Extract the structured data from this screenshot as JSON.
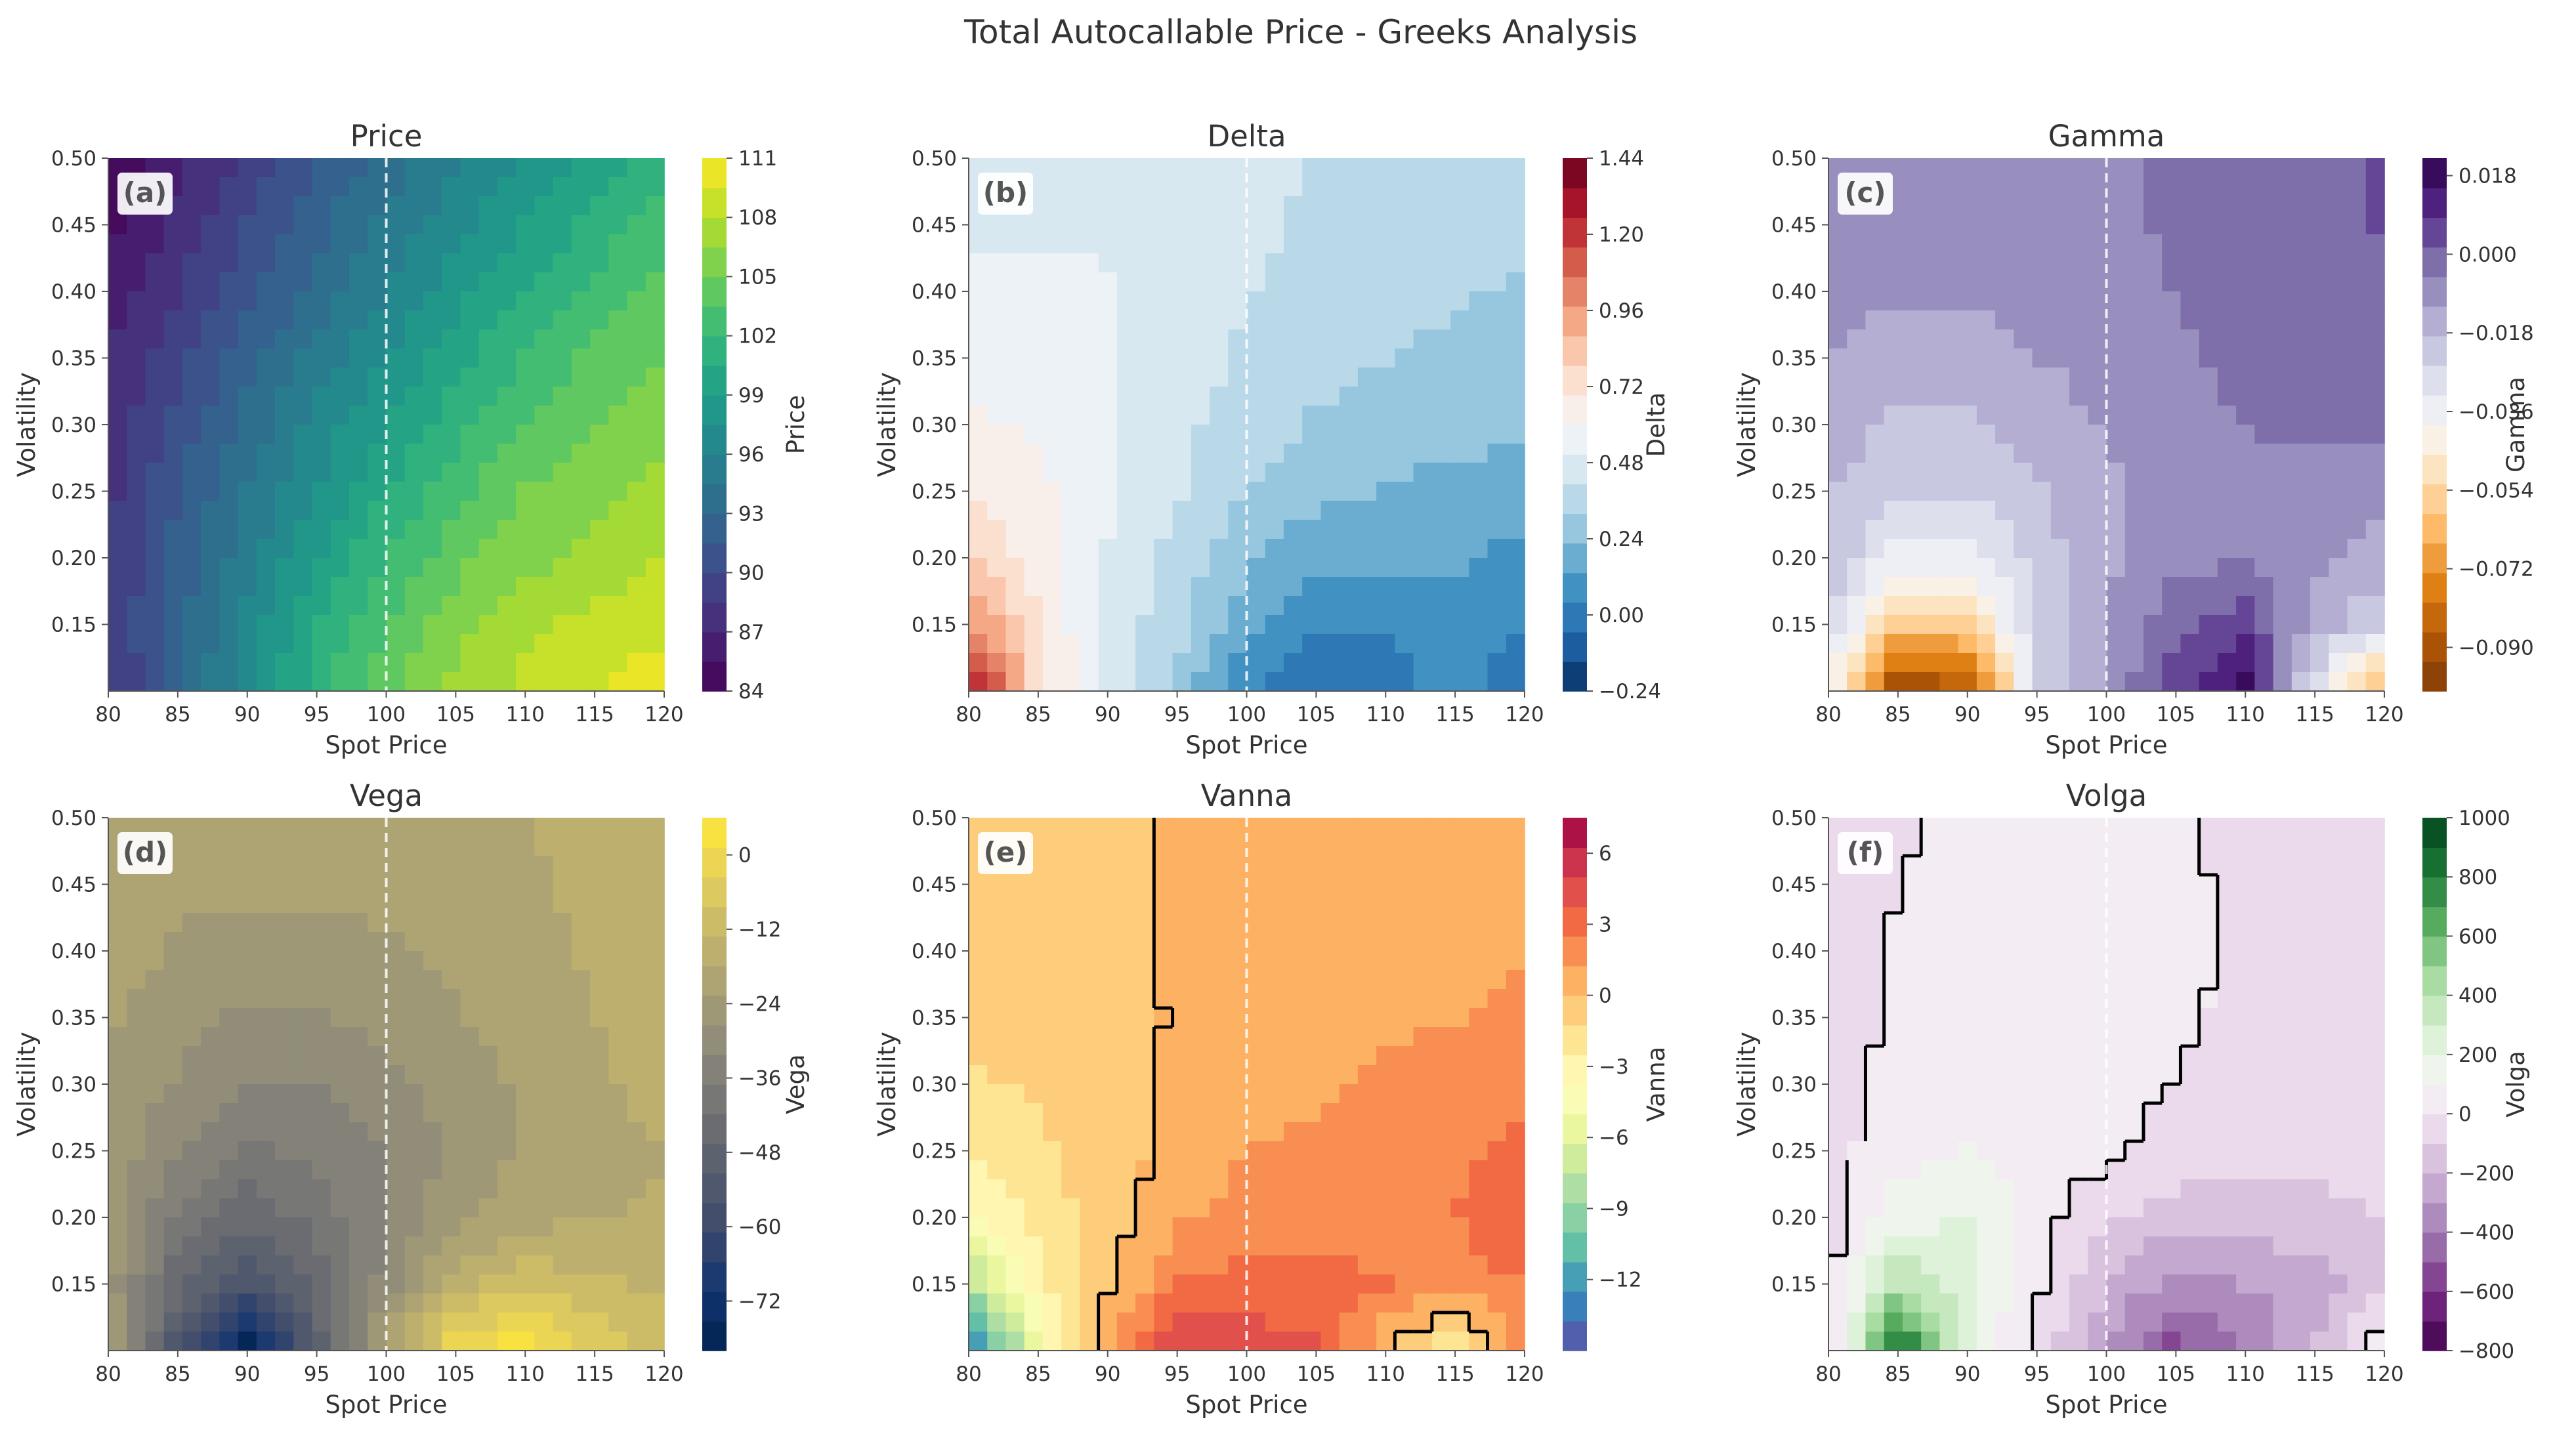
{
  "figure": {
    "title": "Total Autocallable Price - Greeks Analysis"
  },
  "colors": {
    "axis": "#555555",
    "text": "#333333",
    "strike_line": "#ffffff",
    "zero_contour": "#000000"
  },
  "chart_data": [
    {
      "type": "heatmap",
      "id": "price",
      "panel_label": "(a)",
      "title": "Price",
      "xlabel": "Spot Price",
      "ylabel": "Volatility",
      "colorbar_label": "Price",
      "xlim": [
        80,
        120
      ],
      "ylim": [
        0.1,
        0.5
      ],
      "x_ticks": [
        "80",
        "85",
        "90",
        "95",
        "100",
        "105",
        "110",
        "115",
        "120"
      ],
      "y_ticks": [
        "0.15",
        "0.20",
        "0.25",
        "0.30",
        "0.35",
        "0.40",
        "0.45",
        "0.50"
      ],
      "colorbar_range": [
        84,
        111
      ],
      "colorbar_ticks": [
        "84",
        "87",
        "90",
        "93",
        "96",
        "99",
        "102",
        "105",
        "108",
        "111"
      ],
      "colormap": "viridis",
      "strike": 100,
      "zero_contour": false,
      "grid_values": [
        [
          88.0,
          92.5,
          97.0,
          101.5,
          104.5,
          107.0,
          108.5,
          109.5,
          110.5
        ],
        [
          88.5,
          92.5,
          96.5,
          100.5,
          103.5,
          106.0,
          107.5,
          108.5,
          109.0
        ],
        [
          88.5,
          92.0,
          95.5,
          99.0,
          102.0,
          104.5,
          106.0,
          107.0,
          108.0
        ],
        [
          88.0,
          91.5,
          94.5,
          97.5,
          100.5,
          103.0,
          105.0,
          106.0,
          107.0
        ],
        [
          87.5,
          90.5,
          93.5,
          96.5,
          99.0,
          101.5,
          103.5,
          105.0,
          106.0
        ],
        [
          87.0,
          89.5,
          92.5,
          95.0,
          97.5,
          100.0,
          102.0,
          104.0,
          105.0
        ],
        [
          86.0,
          88.5,
          91.0,
          93.5,
          96.0,
          98.5,
          100.5,
          102.5,
          104.0
        ],
        [
          85.0,
          87.5,
          90.0,
          92.5,
          95.0,
          97.0,
          99.0,
          101.0,
          103.0
        ],
        [
          84.5,
          86.5,
          89.0,
          91.5,
          93.5,
          95.5,
          97.5,
          99.5,
          101.5
        ]
      ]
    },
    {
      "type": "heatmap",
      "id": "delta",
      "panel_label": "(b)",
      "title": "Delta",
      "xlabel": "Spot Price",
      "ylabel": "Volatility",
      "colorbar_label": "Delta",
      "xlim": [
        80,
        120
      ],
      "ylim": [
        0.1,
        0.5
      ],
      "x_ticks": [
        "80",
        "85",
        "90",
        "95",
        "100",
        "105",
        "110",
        "115",
        "120"
      ],
      "y_ticks": [
        "0.15",
        "0.20",
        "0.25",
        "0.30",
        "0.35",
        "0.40",
        "0.45",
        "0.50"
      ],
      "colorbar_range": [
        -0.24,
        1.44
      ],
      "colorbar_ticks": [
        "−0.24",
        "0.00",
        "0.24",
        "0.48",
        "0.72",
        "0.96",
        "1.20",
        "1.44"
      ],
      "colormap": "RdBu_r",
      "strike": 100,
      "zero_contour": false,
      "grid_values": [
        [
          1.35,
          0.75,
          0.45,
          0.3,
          0.05,
          -0.05,
          0.0,
          0.08,
          -0.05
        ],
        [
          1.0,
          0.7,
          0.48,
          0.35,
          0.15,
          0.05,
          0.05,
          0.1,
          0.05
        ],
        [
          0.8,
          0.65,
          0.5,
          0.38,
          0.25,
          0.15,
          0.15,
          0.15,
          0.1
        ],
        [
          0.7,
          0.62,
          0.52,
          0.42,
          0.32,
          0.25,
          0.22,
          0.2,
          0.18
        ],
        [
          0.62,
          0.58,
          0.52,
          0.44,
          0.37,
          0.31,
          0.28,
          0.26,
          0.24
        ],
        [
          0.56,
          0.55,
          0.52,
          0.45,
          0.4,
          0.35,
          0.32,
          0.3,
          0.28
        ],
        [
          0.52,
          0.52,
          0.51,
          0.46,
          0.42,
          0.38,
          0.35,
          0.33,
          0.31
        ],
        [
          0.5,
          0.5,
          0.5,
          0.46,
          0.43,
          0.4,
          0.37,
          0.35,
          0.33
        ],
        [
          0.49,
          0.49,
          0.49,
          0.47,
          0.44,
          0.41,
          0.39,
          0.37,
          0.35
        ]
      ]
    },
    {
      "type": "heatmap",
      "id": "gamma",
      "panel_label": "(c)",
      "title": "Gamma",
      "xlabel": "Spot Price",
      "ylabel": "Volatility",
      "colorbar_label": "Gamma",
      "xlim": [
        80,
        120
      ],
      "ylim": [
        0.1,
        0.5
      ],
      "x_ticks": [
        "80",
        "85",
        "90",
        "95",
        "100",
        "105",
        "110",
        "115",
        "120"
      ],
      "y_ticks": [
        "0.15",
        "0.20",
        "0.25",
        "0.30",
        "0.35",
        "0.40",
        "0.45",
        "0.50"
      ],
      "colorbar_range": [
        -0.1,
        0.022
      ],
      "colorbar_ticks": [
        "−0.090",
        "−0.072",
        "−0.054",
        "−0.036",
        "−0.018",
        "0.000",
        "0.018"
      ],
      "colormap": "PuOr",
      "strike": 100,
      "zero_contour": false,
      "grid_values": [
        [
          -0.04,
          -0.095,
          -0.09,
          -0.025,
          -0.01,
          0.005,
          0.02,
          -0.03,
          -0.07
        ],
        [
          -0.025,
          -0.06,
          -0.055,
          -0.025,
          -0.012,
          0.0,
          0.005,
          -0.015,
          -0.025
        ],
        [
          -0.02,
          -0.035,
          -0.035,
          -0.022,
          -0.013,
          -0.008,
          -0.006,
          -0.01,
          -0.015
        ],
        [
          -0.018,
          -0.025,
          -0.025,
          -0.02,
          -0.013,
          -0.009,
          -0.007,
          -0.008,
          -0.01
        ],
        [
          -0.015,
          -0.02,
          -0.02,
          -0.016,
          -0.011,
          -0.007,
          -0.005,
          -0.004,
          -0.004
        ],
        [
          -0.012,
          -0.015,
          -0.014,
          -0.012,
          -0.009,
          -0.006,
          -0.004,
          -0.002,
          -0.001
        ],
        [
          -0.01,
          -0.011,
          -0.011,
          -0.01,
          -0.008,
          -0.005,
          -0.003,
          -0.001,
          0.001
        ],
        [
          -0.009,
          -0.009,
          -0.009,
          -0.009,
          -0.007,
          -0.004,
          -0.002,
          0.0,
          0.002
        ],
        [
          -0.008,
          -0.008,
          -0.008,
          -0.008,
          -0.006,
          -0.004,
          -0.002,
          0.001,
          0.002
        ]
      ]
    },
    {
      "type": "heatmap",
      "id": "vega",
      "panel_label": "(d)",
      "title": "Vega",
      "xlabel": "Spot Price",
      "ylabel": "Volatility",
      "colorbar_label": "Vega",
      "xlim": [
        80,
        120
      ],
      "ylim": [
        0.1,
        0.5
      ],
      "x_ticks": [
        "80",
        "85",
        "90",
        "95",
        "100",
        "105",
        "110",
        "115",
        "120"
      ],
      "y_ticks": [
        "0.15",
        "0.20",
        "0.25",
        "0.30",
        "0.35",
        "0.40",
        "0.45",
        "0.50"
      ],
      "colorbar_range": [
        -80,
        6
      ],
      "colorbar_ticks": [
        "−72",
        "−60",
        "−48",
        "−36",
        "−24",
        "−12",
        "0"
      ],
      "colormap": "cividis",
      "strike": 100,
      "zero_contour": false,
      "grid_values": [
        [
          -20,
          -55,
          -80,
          -50,
          -20,
          0,
          6,
          -5,
          -10
        ],
        [
          -25,
          -45,
          -55,
          -45,
          -30,
          -15,
          -10,
          -12,
          -15
        ],
        [
          -25,
          -38,
          -45,
          -40,
          -32,
          -24,
          -20,
          -18,
          -17
        ],
        [
          -24,
          -32,
          -38,
          -36,
          -32,
          -26,
          -22,
          -20,
          -18
        ],
        [
          -23,
          -28,
          -32,
          -32,
          -29,
          -25,
          -22,
          -19,
          -16
        ],
        [
          -22,
          -26,
          -28,
          -28,
          -26,
          -23,
          -21,
          -18,
          -15
        ],
        [
          -21,
          -23,
          -24,
          -24,
          -23,
          -22,
          -20,
          -17,
          -14
        ],
        [
          -21,
          -22,
          -22,
          -22,
          -22,
          -21,
          -19,
          -16,
          -14
        ],
        [
          -20,
          -21,
          -21,
          -21,
          -21,
          -20,
          -18,
          -15,
          -13
        ]
      ]
    },
    {
      "type": "heatmap",
      "id": "vanna",
      "panel_label": "(e)",
      "title": "Vanna",
      "xlabel": "Spot Price",
      "ylabel": "Volatility",
      "colorbar_label": "Vanna",
      "xlim": [
        80,
        120
      ],
      "ylim": [
        0.1,
        0.5
      ],
      "x_ticks": [
        "80",
        "85",
        "90",
        "95",
        "100",
        "105",
        "110",
        "115",
        "120"
      ],
      "y_ticks": [
        "0.15",
        "0.20",
        "0.25",
        "0.30",
        "0.35",
        "0.40",
        "0.45",
        "0.50"
      ],
      "colorbar_range": [
        -15,
        7.5
      ],
      "colorbar_ticks": [
        "−12",
        "−9",
        "−6",
        "−3",
        "0",
        "3",
        "6"
      ],
      "colormap": "Spectral_r",
      "strike": 100,
      "zero_contour": true,
      "grid_values": [
        [
          -14,
          -5,
          1.5,
          5.0,
          4.5,
          4.0,
          0,
          -3,
          2.5
        ],
        [
          -8,
          -3,
          -0.5,
          2.5,
          3.0,
          3.0,
          2.5,
          2.0,
          2.5
        ],
        [
          -4,
          -2,
          -0.5,
          1.0,
          1.8,
          2.0,
          2.2,
          2.5,
          3.5
        ],
        [
          -2.5,
          -1.5,
          -0.6,
          0.3,
          1.2,
          1.6,
          2.0,
          2.2,
          2.8
        ],
        [
          -1.5,
          -1.0,
          -0.5,
          0.2,
          0.7,
          1.0,
          1.5,
          2.0,
          2.3
        ],
        [
          -1.0,
          -0.8,
          -0.4,
          0.1,
          0.5,
          0.8,
          1.0,
          1.2,
          1.6
        ],
        [
          -0.8,
          -0.6,
          -0.3,
          0.1,
          0.4,
          0.5,
          0.7,
          0.9,
          1.1
        ],
        [
          -0.6,
          -0.4,
          -0.2,
          0.1,
          0.3,
          0.4,
          0.6,
          0.7,
          0.8
        ],
        [
          -0.5,
          -0.3,
          -0.2,
          0.1,
          0.2,
          0.3,
          0.5,
          0.6,
          0.7
        ]
      ]
    },
    {
      "type": "heatmap",
      "id": "volga",
      "panel_label": "(f)",
      "title": "Volga",
      "xlabel": "Spot Price",
      "ylabel": "Volatility",
      "colorbar_label": "Volga",
      "xlim": [
        80,
        120
      ],
      "ylim": [
        0.1,
        0.5
      ],
      "x_ticks": [
        "80",
        "85",
        "90",
        "95",
        "100",
        "105",
        "110",
        "115",
        "120"
      ],
      "y_ticks": [
        "0.15",
        "0.20",
        "0.25",
        "0.30",
        "0.35",
        "0.40",
        "0.45",
        "0.50"
      ],
      "colorbar_range": [
        -800,
        1000
      ],
      "colorbar_ticks": [
        "−800",
        "−600",
        "−400",
        "−200",
        "0",
        "200",
        "400",
        "600",
        "800",
        "1000"
      ],
      "colormap": "PRGn",
      "strike": 100,
      "zero_contour": true,
      "grid_values": [
        [
          -100,
          900,
          200,
          -50,
          -300,
          -550,
          -400,
          -200,
          150
        ],
        [
          -50,
          400,
          250,
          20,
          -200,
          -350,
          -300,
          -250,
          -150
        ],
        [
          -40,
          150,
          200,
          50,
          -80,
          -150,
          -150,
          -120,
          -100
        ],
        [
          -40,
          60,
          100,
          60,
          20,
          -40,
          -80,
          -80,
          -70
        ],
        [
          -30,
          20,
          50,
          45,
          30,
          0,
          -40,
          -60,
          -60
        ],
        [
          -30,
          10,
          30,
          35,
          30,
          15,
          -20,
          -50,
          -55
        ],
        [
          -30,
          5,
          20,
          25,
          25,
          15,
          -10,
          -45,
          -50
        ],
        [
          -30,
          0,
          12,
          18,
          20,
          10,
          -10,
          -40,
          -45
        ],
        [
          -30,
          -5,
          5,
          12,
          15,
          5,
          -15,
          -40,
          -45
        ]
      ]
    }
  ]
}
